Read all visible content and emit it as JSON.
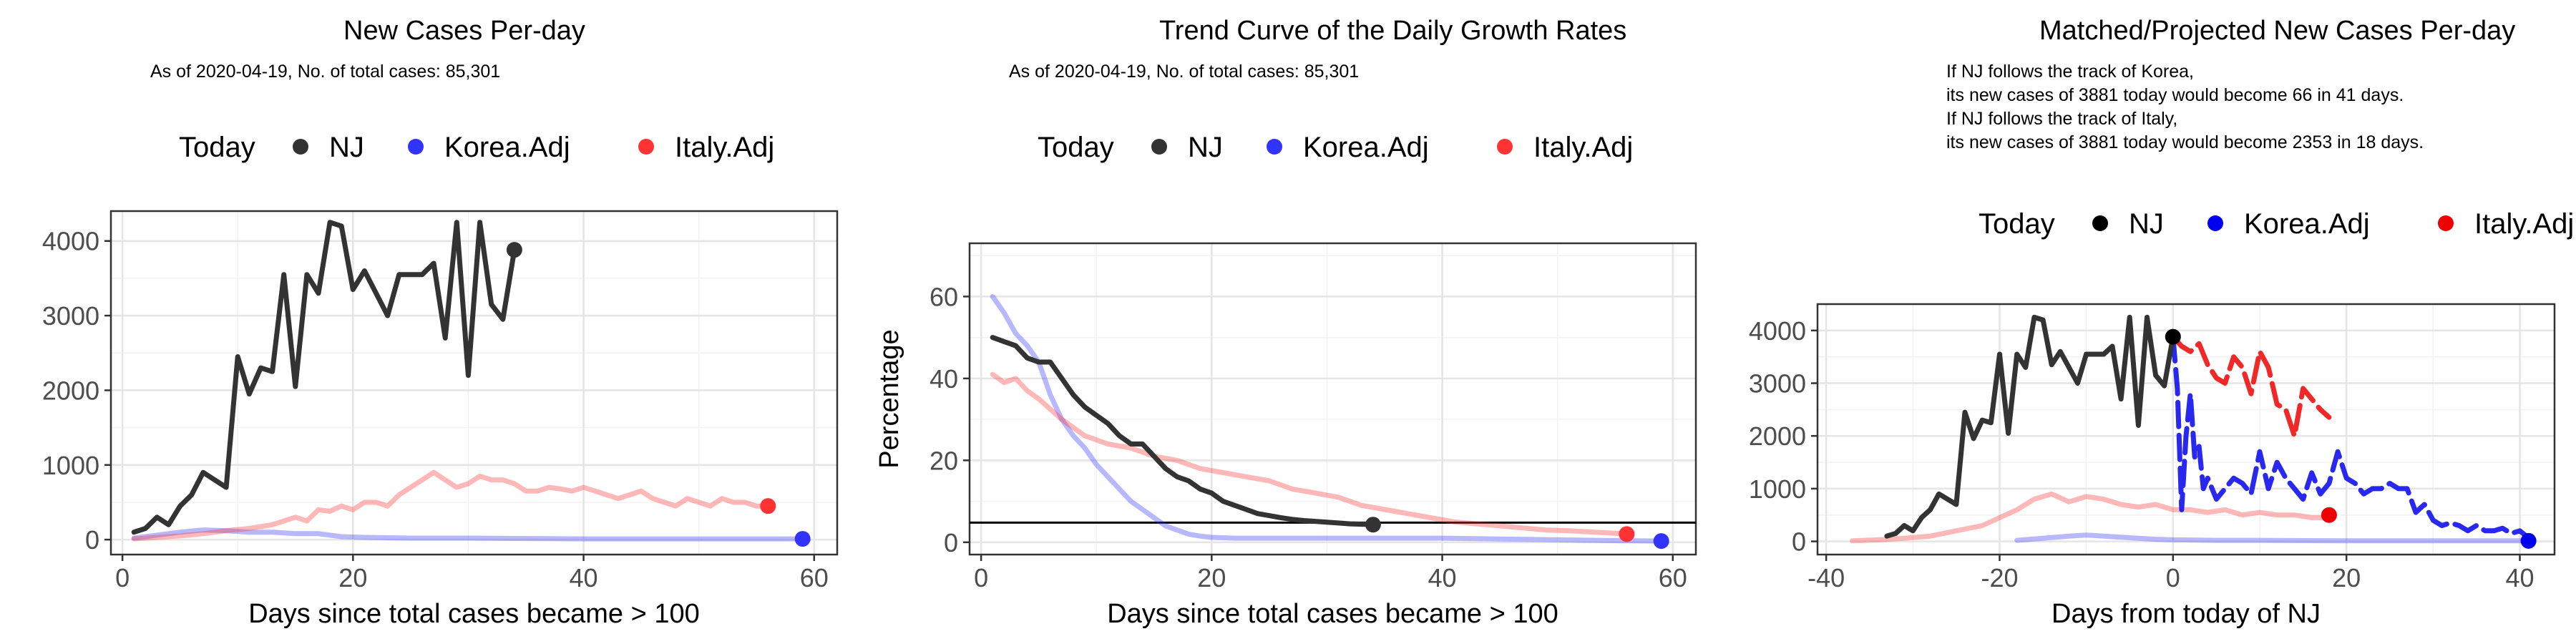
{
  "legend": {
    "title": "Today",
    "items": [
      {
        "label": "NJ",
        "color": "#333333",
        "color_strong": "#000000"
      },
      {
        "label": "Korea.Adj",
        "color": "#3333ff",
        "color_strong": "#0000ee"
      },
      {
        "label": "Italy.Adj",
        "color": "#ff3333",
        "color_strong": "#ee0000"
      }
    ]
  },
  "chart_data": [
    {
      "type": "line",
      "title": "New Cases Per-day",
      "subtitle": "As of 2020-04-19, No. of total cases: 85,301",
      "xlabel": "Days since total cases became > 100",
      "ylabel": "",
      "xlim": [
        -1,
        62
      ],
      "ylim": [
        -200,
        4400
      ],
      "xticks": [
        0,
        20,
        40,
        60
      ],
      "yticks": [
        0,
        1000,
        2000,
        3000,
        4000
      ],
      "grid": true,
      "legend_position": "top",
      "series": [
        {
          "name": "NJ",
          "color": "#333333",
          "opacity": 1,
          "x": [
            1,
            2,
            3,
            4,
            5,
            6,
            7,
            8,
            9,
            10,
            11,
            12,
            13,
            14,
            15,
            16,
            17,
            18,
            19,
            20,
            21,
            22,
            23,
            24,
            25,
            26,
            27,
            28,
            29,
            30,
            31,
            32,
            33,
            34
          ],
          "y": [
            100,
            150,
            300,
            200,
            450,
            600,
            900,
            800,
            700,
            2450,
            1950,
            2300,
            2250,
            3550,
            2050,
            3550,
            3300,
            4250,
            4200,
            3350,
            3600,
            3300,
            3000,
            3550,
            3550,
            3550,
            3700,
            2700,
            4250,
            2200,
            4250,
            3150,
            2950,
            3881
          ],
          "today": {
            "x": 34,
            "y": 3881
          }
        },
        {
          "name": "Korea.Adj",
          "color": "#3333ff",
          "opacity": 0.35,
          "x": [
            1,
            3,
            5,
            7,
            9,
            11,
            13,
            15,
            17,
            19,
            21,
            25,
            30,
            35,
            40,
            45,
            50,
            55,
            59
          ],
          "y": [
            20,
            60,
            100,
            130,
            120,
            100,
            100,
            80,
            80,
            40,
            30,
            20,
            20,
            15,
            10,
            10,
            10,
            10,
            10
          ],
          "today": {
            "x": 59,
            "y": 10
          }
        },
        {
          "name": "Italy.Adj",
          "color": "#ff3333",
          "opacity": 0.35,
          "x": [
            1,
            3,
            5,
            7,
            9,
            11,
            13,
            15,
            16,
            17,
            18,
            19,
            20,
            21,
            22,
            23,
            24,
            25,
            26,
            27,
            28,
            29,
            30,
            31,
            32,
            33,
            34,
            35,
            36,
            37,
            38,
            39,
            40,
            41,
            42,
            43,
            44,
            45,
            46,
            47,
            48,
            49,
            50,
            51,
            52,
            53,
            54,
            55,
            56
          ],
          "y": [
            10,
            30,
            50,
            80,
            120,
            150,
            200,
            300,
            250,
            400,
            380,
            450,
            400,
            500,
            500,
            450,
            600,
            700,
            800,
            900,
            800,
            700,
            750,
            850,
            800,
            800,
            750,
            650,
            650,
            700,
            680,
            650,
            700,
            650,
            600,
            550,
            600,
            650,
            550,
            500,
            450,
            550,
            500,
            450,
            550,
            500,
            500,
            450,
            450
          ],
          "today": {
            "x": 56,
            "y": 450
          }
        }
      ]
    },
    {
      "type": "line",
      "title": "Trend Curve of the Daily Growth Rates",
      "subtitle": "As of 2020-04-19, No. of total cases: 85,301",
      "xlabel": "Days since total cases became > 100",
      "ylabel": "Percentage",
      "xlim": [
        -1,
        62
      ],
      "ylim": [
        -3,
        73
      ],
      "xticks": [
        0,
        20,
        40,
        60
      ],
      "yticks": [
        0,
        20,
        40,
        60
      ],
      "grid": true,
      "hline": 4.8,
      "legend_position": "top",
      "series": [
        {
          "name": "NJ",
          "color": "#333333",
          "opacity": 1,
          "x": [
            1,
            2,
            3,
            4,
            5,
            6,
            7,
            8,
            9,
            10,
            11,
            12,
            13,
            14,
            15,
            16,
            17,
            18,
            19,
            20,
            21,
            22,
            23,
            24,
            25,
            26,
            27,
            28,
            29,
            30,
            31,
            32,
            33,
            34
          ],
          "y": [
            50,
            49,
            48,
            45,
            44,
            44,
            40,
            36,
            33,
            31,
            29,
            26,
            24,
            24,
            21,
            18,
            16,
            15,
            13,
            12,
            10,
            9,
            8,
            7,
            6.5,
            6,
            5.6,
            5.3,
            5.1,
            4.9,
            4.7,
            4.5,
            4.4,
            4.3
          ],
          "today": {
            "x": 34,
            "y": 4.3
          }
        },
        {
          "name": "Korea.Adj",
          "color": "#3333ff",
          "opacity": 0.35,
          "x": [
            1,
            2,
            3,
            4,
            5,
            6,
            7,
            8,
            9,
            10,
            11,
            12,
            13,
            14,
            15,
            16,
            17,
            18,
            19,
            20,
            22,
            25,
            30,
            35,
            40,
            45,
            50,
            55,
            59
          ],
          "y": [
            60,
            56,
            51,
            48,
            44,
            36,
            30,
            26,
            23,
            19,
            16,
            13,
            10,
            8,
            6,
            4,
            3,
            2,
            1.5,
            1.2,
            1,
            1,
            1,
            1,
            1,
            0.8,
            0.6,
            0.4,
            0.3
          ],
          "today": {
            "x": 59,
            "y": 0.3
          }
        },
        {
          "name": "Italy.Adj",
          "color": "#ff3333",
          "opacity": 0.35,
          "x": [
            1,
            2,
            3,
            4,
            5,
            7,
            9,
            11,
            13,
            15,
            17,
            19,
            21,
            23,
            25,
            27,
            29,
            31,
            33,
            35,
            37,
            39,
            41,
            43,
            45,
            47,
            49,
            51,
            53,
            55,
            56
          ],
          "y": [
            41,
            39,
            40,
            37,
            35,
            30,
            26,
            24,
            23,
            21,
            20,
            18,
            17,
            16,
            15,
            13,
            12,
            11,
            9,
            8,
            7,
            6,
            5,
            4.5,
            4,
            3.5,
            3,
            2.8,
            2.5,
            2.2,
            2
          ],
          "today": {
            "x": 56,
            "y": 2
          }
        }
      ]
    },
    {
      "type": "line",
      "title": "Matched/Projected New Cases Per-day",
      "annotation_lines": [
        "If NJ follows the track of Korea,",
        "its new cases of 3881 today would become 66 in 41 days.",
        "If NJ follows the track of Italy,",
        "its new cases of 3881 today would become 2353 in 18 days."
      ],
      "xlabel": "Days from today of NJ",
      "ylabel": "",
      "xlim": [
        -41,
        44
      ],
      "ylim": [
        -250,
        4500
      ],
      "xticks": [
        -40,
        -20,
        0,
        20,
        40
      ],
      "yticks": [
        0,
        1000,
        2000,
        3000,
        4000
      ],
      "grid": true,
      "legend_position": "top",
      "series": [
        {
          "name": "NJ",
          "color": "#333333",
          "opacity": 1,
          "dash": false,
          "x": [
            -33,
            -32,
            -31,
            -30,
            -29,
            -28,
            -27,
            -26,
            -25,
            -24,
            -23,
            -22,
            -21,
            -20,
            -19,
            -18,
            -17,
            -16,
            -15,
            -14,
            -13,
            -12,
            -11,
            -10,
            -9,
            -8,
            -7,
            -6,
            -5,
            -4,
            -3,
            -2,
            -1,
            0
          ],
          "y": [
            100,
            150,
            300,
            200,
            450,
            600,
            900,
            800,
            700,
            2450,
            1950,
            2300,
            2250,
            3550,
            2050,
            3550,
            3300,
            4250,
            4200,
            3350,
            3600,
            3300,
            3000,
            3550,
            3550,
            3550,
            3700,
            2700,
            4250,
            2200,
            4250,
            3150,
            2950,
            3881
          ],
          "today": {
            "x": 0,
            "y": 3881
          }
        },
        {
          "name": "Italy.Adj (history)",
          "color": "#ff3333",
          "opacity": 0.35,
          "dash": false,
          "x": [
            -37,
            -34,
            -31,
            -28,
            -25,
            -22,
            -20,
            -18,
            -16,
            -14,
            -12,
            -10,
            -8,
            -6,
            -4,
            -2,
            0,
            2,
            4,
            6,
            8,
            10,
            12,
            14,
            16,
            18
          ],
          "y": [
            10,
            30,
            60,
            100,
            200,
            300,
            450,
            600,
            800,
            900,
            750,
            850,
            800,
            700,
            650,
            700,
            600,
            600,
            550,
            600,
            500,
            550,
            500,
            500,
            450,
            450
          ],
          "today": null
        },
        {
          "name": "Korea.Adj (history)",
          "color": "#3333ff",
          "opacity": 0.35,
          "dash": false,
          "x": [
            -18,
            -15,
            -12,
            -10,
            -8,
            -6,
            -4,
            -2,
            0,
            5,
            10,
            15,
            20,
            25,
            30,
            35,
            41
          ],
          "y": [
            20,
            60,
            100,
            120,
            100,
            80,
            60,
            40,
            30,
            20,
            20,
            15,
            10,
            10,
            10,
            10,
            10
          ],
          "today": null
        },
        {
          "name": "Italy.Adj",
          "color": "#ee1111",
          "opacity": 0.9,
          "dash": true,
          "x": [
            0,
            1,
            2,
            3,
            4,
            5,
            6,
            7,
            8,
            9,
            10,
            11,
            12,
            13,
            14,
            15,
            16,
            17,
            18
          ],
          "y": [
            3881,
            3700,
            3600,
            3750,
            3350,
            3100,
            3000,
            3500,
            3300,
            2800,
            3600,
            3300,
            2600,
            2500,
            2000,
            2900,
            2700,
            2500,
            2353
          ],
          "today": {
            "x": 18,
            "y": 500
          }
        },
        {
          "name": "Korea.Adj",
          "color": "#1111ee",
          "opacity": 0.9,
          "dash": true,
          "x": [
            0,
            0.5,
            1,
            1.5,
            2,
            2.5,
            3,
            3.5,
            4,
            5,
            6,
            7,
            8,
            9,
            10,
            11,
            12,
            13,
            14,
            15,
            16,
            17,
            18,
            19,
            20,
            21,
            22,
            23,
            24,
            25,
            26,
            27,
            28,
            29,
            30,
            31,
            32,
            33,
            34,
            35,
            36,
            37,
            38,
            39,
            40,
            41
          ],
          "y": [
            3881,
            2900,
            600,
            2000,
            2800,
            1600,
            1800,
            1000,
            1200,
            800,
            1000,
            1200,
            1100,
            900,
            1700,
            1000,
            1500,
            1200,
            1000,
            800,
            1300,
            900,
            1100,
            1700,
            1200,
            1100,
            900,
            1000,
            1000,
            1100,
            1000,
            1000,
            550,
            700,
            400,
            300,
            350,
            300,
            200,
            300,
            200,
            200,
            250,
            150,
            200,
            66
          ],
          "today": {
            "x": 41,
            "y": 10
          }
        }
      ]
    }
  ]
}
